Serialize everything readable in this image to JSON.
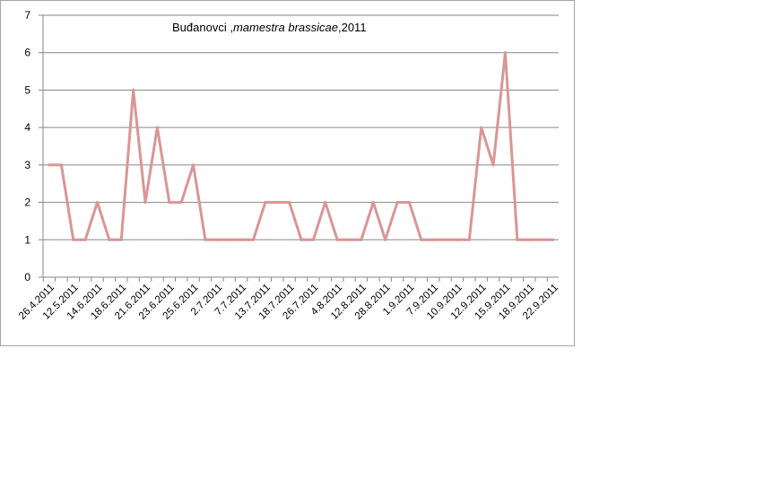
{
  "chart_data": {
    "type": "line",
    "title": {
      "place": "Buđanovci ,",
      "species": "mamestra brassicae",
      "year": ",2011"
    },
    "xlabel": "",
    "ylabel": "",
    "ylim": [
      0,
      7
    ],
    "yticks": [
      0,
      1,
      2,
      3,
      4,
      5,
      6,
      7
    ],
    "grid": true,
    "legend": "none",
    "line_color": "#d99694",
    "x_tick_labels": [
      "26.4.2011",
      "12.5.2011",
      "14.6.2011",
      "18.6.2011",
      "21.6.2011",
      "23.6.2011",
      "25.6.2011",
      "2.7.2011",
      "7.7.2011",
      "13.7.2011",
      "18.7.2011",
      "26.7.2011",
      "4.8.2011",
      "12.8.2011",
      "28.8.2011",
      "1.9.2011",
      "7.9.2011",
      "10.9.2011",
      "12.9.2011",
      "15.9.2011",
      "18.9.2011",
      "22.9.2011"
    ],
    "values": [
      3,
      3,
      1,
      1,
      2,
      1,
      1,
      5,
      2,
      4,
      2,
      2,
      3,
      1,
      1,
      1,
      1,
      1,
      2,
      2,
      2,
      1,
      1,
      2,
      1,
      1,
      1,
      2,
      1,
      2,
      2,
      1,
      1,
      1,
      1,
      1,
      4,
      3,
      6,
      1,
      1,
      1,
      1
    ]
  }
}
